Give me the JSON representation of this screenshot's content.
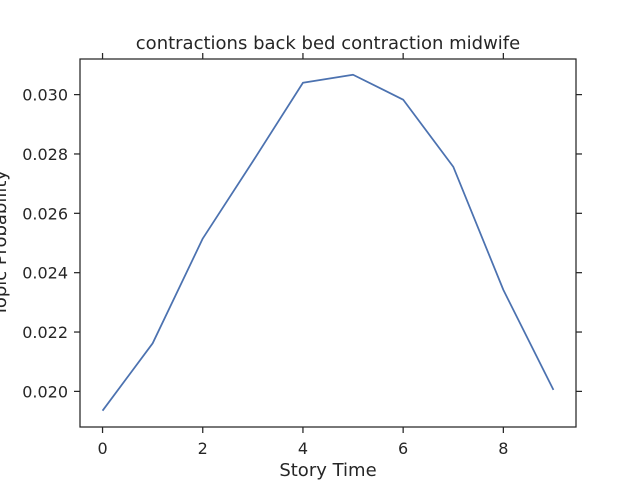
{
  "chart_data": {
    "type": "line",
    "title": "contractions back bed contraction midwife",
    "xlabel": "Story Time",
    "ylabel": "Topic Probability",
    "xlim": [
      -0.45,
      9.45
    ],
    "ylim": [
      0.0188,
      0.0312
    ],
    "xticks": [
      0,
      2,
      4,
      6,
      8
    ],
    "xtick_labels": [
      "0",
      "2",
      "4",
      "6",
      "8"
    ],
    "yticks": [
      0.02,
      0.022,
      0.024,
      0.026,
      0.028,
      0.03
    ],
    "ytick_labels": [
      "0.020",
      "0.022",
      "0.024",
      "0.026",
      "0.028",
      "0.030"
    ],
    "grid": false,
    "series": [
      {
        "color": "#4c72b0",
        "x": [
          0,
          1,
          2,
          3,
          4,
          5,
          6,
          7,
          8,
          9
        ],
        "values": [
          0.01935,
          0.02162,
          0.02515,
          0.02775,
          0.0304,
          0.03067,
          0.02983,
          0.02757,
          0.02342,
          0.02005
        ]
      }
    ]
  }
}
